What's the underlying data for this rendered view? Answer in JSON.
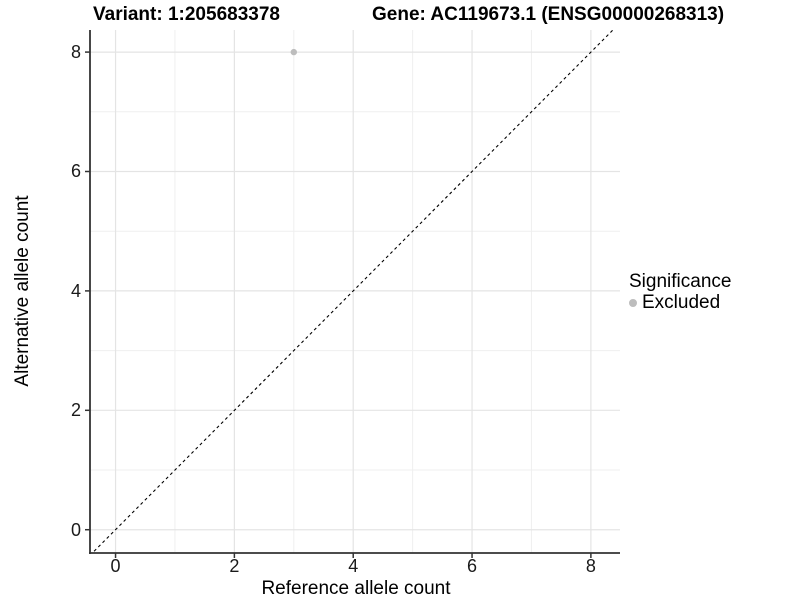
{
  "header": {
    "variant_title": "Variant: 1:205683378",
    "gene_title": "Gene: AC119673.1 (ENSG00000268313)"
  },
  "legend": {
    "title": "Significance",
    "items": [
      {
        "label": "Excluded",
        "color": "#bdbdbd"
      }
    ]
  },
  "chart_data": {
    "type": "scatter",
    "title": "Variant: 1:205683378 / Gene: AC119673.1 (ENSG00000268313)",
    "xlabel": "Reference allele count",
    "ylabel": "Alternative allele count",
    "x_ticks": [
      0,
      2,
      4,
      6,
      8
    ],
    "y_ticks": [
      0,
      2,
      4,
      6,
      8
    ],
    "x_minor": [
      1,
      3,
      5,
      7
    ],
    "y_minor": [
      1,
      3,
      5,
      7
    ],
    "xlim": [
      -0.43,
      8.49
    ],
    "ylim": [
      -0.39,
      8.37
    ],
    "grid": true,
    "legend_position": "right",
    "series": [
      {
        "name": "Excluded",
        "color": "#bdbdbd",
        "point_radius": 3.2,
        "points": [
          [
            3,
            8
          ]
        ]
      }
    ],
    "reference_line": {
      "equation": "y = x",
      "style": "dashed",
      "dash": "3 3",
      "color": "#000000"
    }
  },
  "colors": {
    "grid_major": "#e4e4e4",
    "grid_minor": "#efefef",
    "axis_line": "#333333",
    "tick_mark": "#333333",
    "text": "#000000"
  }
}
